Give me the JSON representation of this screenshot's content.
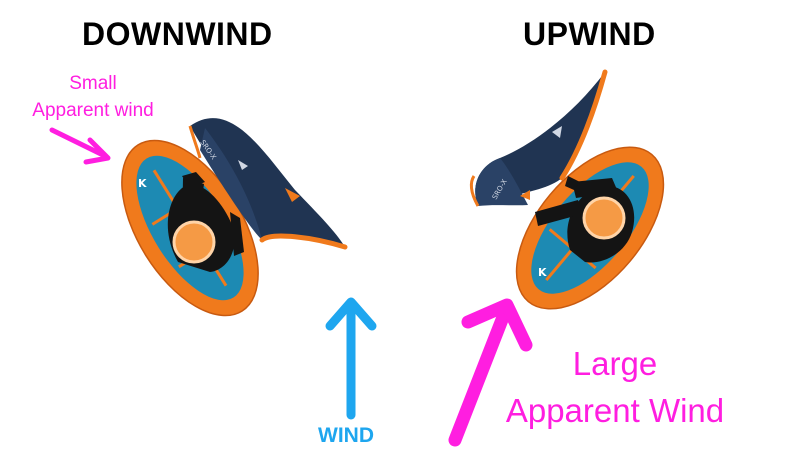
{
  "titles": {
    "downwind": "DOWNWIND",
    "upwind": "UPWIND"
  },
  "labels": {
    "small_line1": "Small",
    "small_line2": "Apparent wind",
    "large_line1": "Large",
    "large_line2": "Apparent Wind",
    "wind": "WIND"
  },
  "wing_text": "SRO-X",
  "colors": {
    "magenta": "#ff1ee0",
    "wind_blue": "#1ea6ef",
    "board_orange": "#f07a1c",
    "board_blue": "#1d8ab3",
    "wing_navy": "#203452",
    "helmet_orange": "#f59a45",
    "rider_black": "#141414"
  }
}
